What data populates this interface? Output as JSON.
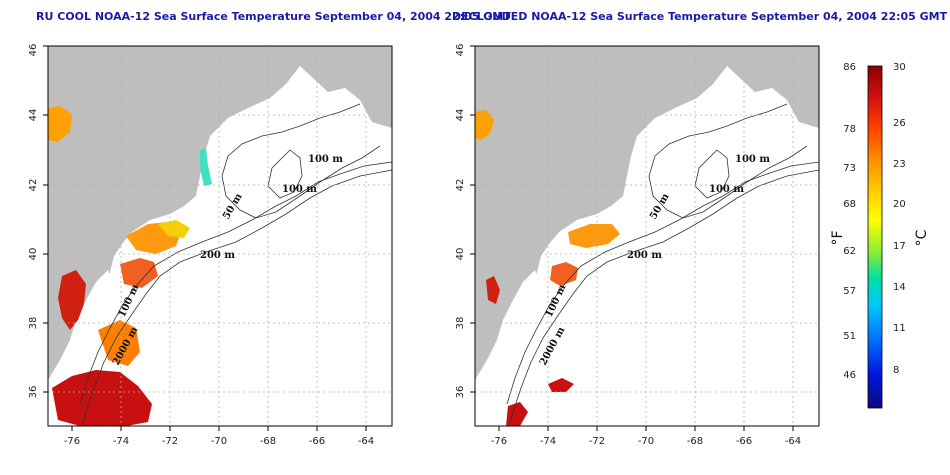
{
  "titles": {
    "left": "RU COOL NOAA-12 Sea Surface Temperature September 04, 2004 22:05 GMT",
    "right": "DECLOUDED NOAA-12 Sea Surface Temperature September 04, 2004 22:05 GMT"
  },
  "axes": {
    "lon_ticks": [
      "-76",
      "-74",
      "-72",
      "-70",
      "-68",
      "-66",
      "-64"
    ],
    "lat_ticks": [
      "36",
      "38",
      "40",
      "42",
      "44",
      "46"
    ]
  },
  "contour_labels": [
    "100 m",
    "100 m",
    "50 m",
    "200 m",
    "100 m",
    "2000 m"
  ],
  "colorbar": {
    "fahrenheit_ticks": [
      "86",
      "78",
      "73",
      "68",
      "62",
      "57",
      "51",
      "46"
    ],
    "celsius_ticks": [
      "30",
      "26",
      "23",
      "20",
      "17",
      "14",
      "11",
      "8"
    ],
    "fahrenheit_unit": "°F",
    "celsius_unit": "°C",
    "colors": [
      "#8b0000",
      "#d01010",
      "#ff4000",
      "#ff8c00",
      "#ffc800",
      "#ffff00",
      "#90ee30",
      "#00e0a0",
      "#00c8ff",
      "#0070ff",
      "#0018e0",
      "#0a0a7a"
    ]
  },
  "map_colors": {
    "land": "#bebebe",
    "ocean": "#ffffff",
    "grid": "#b0b0b0"
  }
}
